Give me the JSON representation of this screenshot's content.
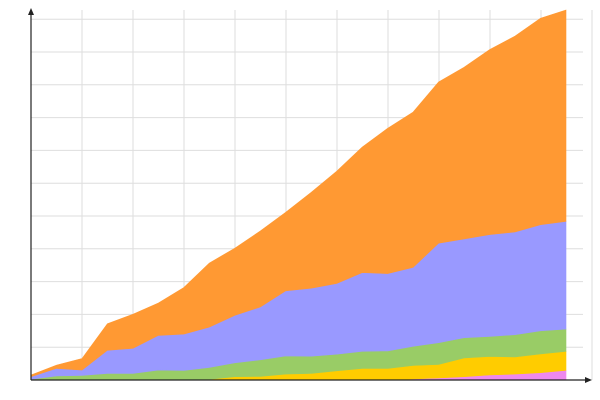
{
  "chart_data": {
    "type": "area",
    "stacked": true,
    "grid": true,
    "legend": "none",
    "title": "",
    "xlabel": "",
    "ylabel": "",
    "x": [
      0,
      1,
      2,
      3,
      4,
      5,
      6,
      7,
      8,
      9,
      10,
      11,
      12,
      13,
      14,
      15,
      16,
      17,
      18,
      19,
      20,
      21
    ],
    "xlim": [
      0,
      21
    ],
    "ylim": [
      0,
      112
    ],
    "series": [
      {
        "color": "#ee88ee",
        "values": [
          0,
          0,
          0,
          0,
          0,
          0,
          0,
          0,
          0,
          0,
          0,
          0,
          0,
          0,
          0,
          0.3,
          0.6,
          1.0,
          1.5,
          1.8,
          2.2,
          2.9
        ]
      },
      {
        "color": "#ffcc00",
        "values": [
          0,
          0,
          0,
          0,
          0,
          0,
          0,
          0.2,
          1.0,
          1.1,
          1.8,
          2.0,
          2.8,
          3.5,
          3.5,
          4.1,
          4.1,
          5.7,
          5.6,
          5.2,
          5.7,
          5.8
        ]
      },
      {
        "color": "#99cc66",
        "values": [
          0.2,
          1.2,
          1.4,
          2.0,
          2.0,
          3.0,
          2.9,
          3.6,
          4.2,
          5.0,
          5.5,
          5.2,
          5.0,
          5.2,
          5.3,
          5.8,
          6.6,
          6.1,
          6.1,
          6.7,
          7.0,
          6.7
        ]
      },
      {
        "color": "#9999ff",
        "values": [
          0.8,
          2.3,
          1.6,
          7.0,
          7.6,
          10.5,
          11.0,
          12.2,
          14.4,
          16.0,
          19.7,
          20.6,
          21.4,
          23.8,
          23.4,
          23.9,
          30.1,
          29.9,
          30.8,
          31.1,
          32.1,
          32.6
        ]
      },
      {
        "color": "#ff9933",
        "values": [
          0.5,
          1.0,
          3.5,
          8.0,
          10.3,
          9.8,
          14.1,
          19.4,
          20.3,
          23.0,
          23.8,
          29.0,
          34.0,
          38.0,
          44.0,
          47.0,
          48.8,
          52.0,
          56.0,
          59.3,
          62.5,
          64.0
        ]
      }
    ]
  }
}
